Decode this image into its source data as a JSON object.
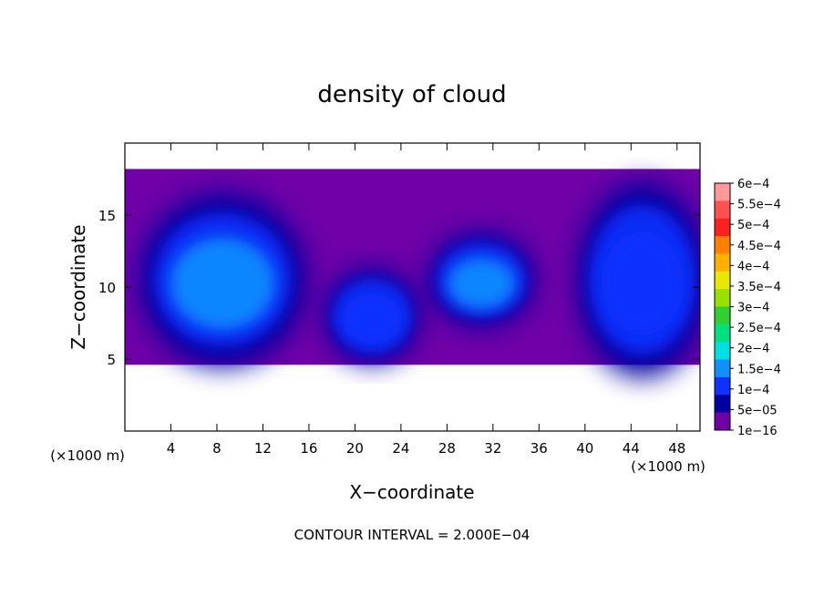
{
  "chart_data": {
    "type": "heatmap",
    "title": "density of cloud",
    "xlabel": "X−coordinate",
    "ylabel": "Z−coordinate",
    "x_unit": "(×1000 m)",
    "y_unit": "(×1000 m)",
    "footer": "CONTOUR INTERVAL = 2.000E−04",
    "xlim": [
      0,
      50
    ],
    "ylim": [
      0,
      20
    ],
    "x_ticks": [
      4,
      8,
      12,
      16,
      20,
      24,
      28,
      32,
      36,
      40,
      44,
      48
    ],
    "y_ticks": [
      5,
      10,
      15
    ],
    "colorbar": {
      "labels": [
        "6e−4",
        "5.5e−4",
        "5e−4",
        "4.5e−4",
        "4e−4",
        "3.5e−4",
        "3e−4",
        "2.5e−4",
        "2e−4",
        "1.5e−4",
        "1e−4",
        "5e−05",
        "1e−16"
      ],
      "colors": [
        "#ff9999",
        "#ff5050",
        "#ff2020",
        "#ff8000",
        "#ffb000",
        "#e8e800",
        "#98e000",
        "#30d030",
        "#00e080",
        "#00e0e0",
        "#1090ff",
        "#1030ff",
        "#0000a0",
        "#7000a8"
      ]
    },
    "cloud_layer": {
      "z_bottom": 4.6,
      "z_top": 18.2
    },
    "blobs": [
      {
        "cx": 8.5,
        "cz": 10.5,
        "rx": 7.0,
        "rz": 5.8,
        "value": 0.00016
      },
      {
        "cx": 31.0,
        "cz": 10.5,
        "rx": 4.5,
        "rz": 3.2,
        "value": 0.00016
      },
      {
        "cx": 21.5,
        "cz": 8.0,
        "rx": 4.0,
        "rz": 3.2,
        "value": 0.00012
      },
      {
        "cx": 45.0,
        "cz": 10.5,
        "rx": 5.5,
        "rz": 6.5,
        "value": 0.00011
      }
    ]
  }
}
